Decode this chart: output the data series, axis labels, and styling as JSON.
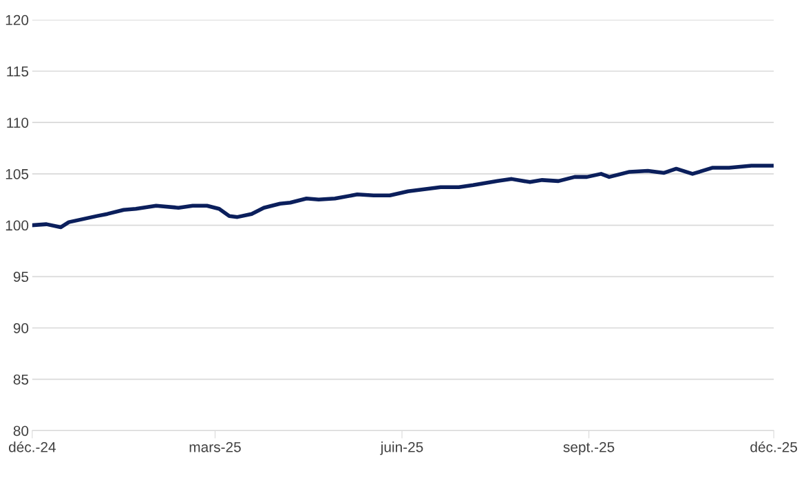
{
  "chart_data": {
    "type": "line",
    "x": [
      "2024-12-01",
      "2024-12-08",
      "2024-12-15",
      "2024-12-19",
      "2024-12-26",
      "2025-01-02",
      "2025-01-07",
      "2025-01-15",
      "2025-01-21",
      "2025-01-31",
      "2025-02-11",
      "2025-02-18",
      "2025-02-25",
      "2025-03-03",
      "2025-03-08",
      "2025-03-12",
      "2025-03-19",
      "2025-03-25",
      "2025-04-02",
      "2025-04-07",
      "2025-04-15",
      "2025-04-21",
      "2025-04-29",
      "2025-05-10",
      "2025-05-18",
      "2025-05-26",
      "2025-06-04",
      "2025-06-12",
      "2025-06-20",
      "2025-06-29",
      "2025-07-06",
      "2025-07-18",
      "2025-07-25",
      "2025-08-03",
      "2025-08-09",
      "2025-08-17",
      "2025-08-25",
      "2025-08-31",
      "2025-09-07",
      "2025-09-11",
      "2025-09-21",
      "2025-09-30",
      "2025-10-08",
      "2025-10-14",
      "2025-10-22",
      "2025-11-01",
      "2025-11-09",
      "2025-11-20",
      "2025-11-30"
    ],
    "series": [
      {
        "color": "#0b1f5c",
        "values": [
          100.0,
          100.1,
          99.8,
          100.3,
          100.6,
          100.9,
          101.1,
          101.5,
          101.6,
          101.9,
          101.7,
          101.9,
          101.9,
          101.6,
          100.9,
          100.8,
          101.1,
          101.7,
          102.1,
          102.2,
          102.6,
          102.5,
          102.6,
          103.0,
          102.9,
          102.9,
          103.3,
          103.5,
          103.7,
          103.7,
          103.9,
          104.3,
          104.5,
          104.2,
          104.4,
          104.3,
          104.7,
          104.7,
          105.0,
          104.7,
          105.2,
          105.3,
          105.1,
          105.5,
          105.0,
          105.6,
          105.6,
          105.8,
          105.8
        ]
      }
    ],
    "xlim": [
      "2024-12-01",
      "2025-12-01"
    ],
    "xticks": [
      {
        "value": "2024-12-01",
        "label": "déc.-24"
      },
      {
        "value": "2025-03-01",
        "label": "mars-25"
      },
      {
        "value": "2025-06-01",
        "label": "juin-25"
      },
      {
        "value": "2025-09-01",
        "label": "sept.-25"
      },
      {
        "value": "2025-12-01",
        "label": "déc.-25"
      }
    ],
    "ylim": [
      80,
      120
    ],
    "yticks": [
      80,
      85,
      90,
      95,
      100,
      105,
      110,
      115,
      120
    ],
    "grid": "y",
    "legend": false,
    "marker": "none",
    "line_style": "solid"
  }
}
